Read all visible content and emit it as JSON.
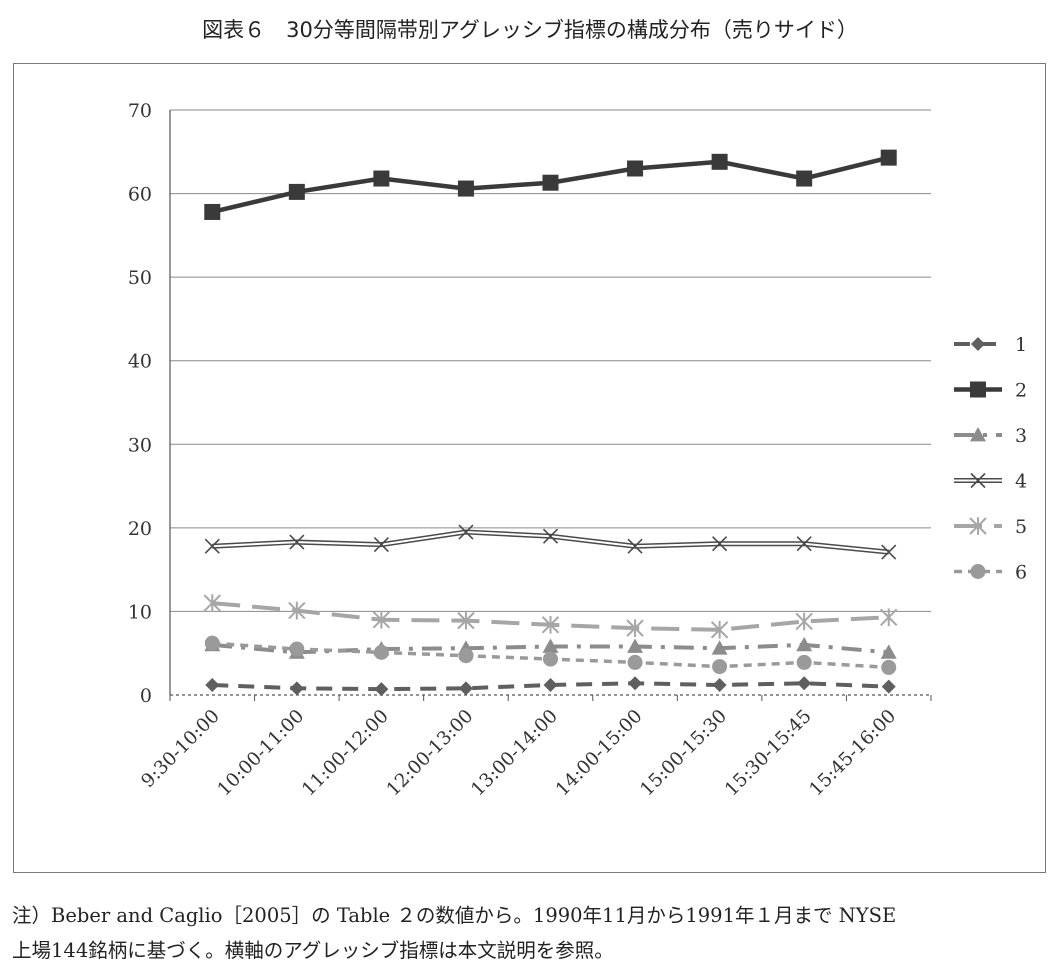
{
  "figure": {
    "title": "図表６　30分等間隔帯別アグレッシブ指標の構成分布（売りサイド）",
    "note_line1": "注）Beber and Caglio［2005］の Table ２の数値から。1990年11月から1991年１月まで NYSE",
    "note_line2": "上場144銘柄に基づく。横軸のアグレッシブ指標は本文説明を参照。"
  },
  "chart_data": {
    "type": "line",
    "title": "",
    "xlabel": "",
    "ylabel": "",
    "ylim": [
      0,
      70
    ],
    "yticks": [
      0,
      10,
      20,
      30,
      40,
      50,
      60,
      70
    ],
    "grid": true,
    "legend_position": "right",
    "categories": [
      "9:30-10:00",
      "10:00-11:00",
      "11:00-12:00",
      "12:00-13:00",
      "13:00-14:00",
      "14:00-15:00",
      "15:00-15:30",
      "15:30-15:45",
      "15:45-16:00"
    ],
    "series": [
      {
        "name": "1",
        "values": [
          1.2,
          0.8,
          0.7,
          0.8,
          1.2,
          1.4,
          1.2,
          1.4,
          1.0
        ],
        "color": "#5f5f5f",
        "dash": "dash",
        "marker": "diamond"
      },
      {
        "name": "2",
        "values": [
          57.8,
          60.2,
          61.8,
          60.6,
          61.3,
          63.0,
          63.8,
          61.8,
          64.3
        ],
        "color": "#3a3a3a",
        "dash": "solid",
        "marker": "square"
      },
      {
        "name": "3",
        "values": [
          6.0,
          5.1,
          5.5,
          5.6,
          5.8,
          5.8,
          5.6,
          6.0,
          5.1
        ],
        "color": "#8c8c8c",
        "dash": "dashdot",
        "marker": "triangle"
      },
      {
        "name": "4",
        "values": [
          17.8,
          18.3,
          18.0,
          19.5,
          19.0,
          17.8,
          18.1,
          18.1,
          17.1
        ],
        "color": "#4a4a4a",
        "dash": "double",
        "marker": "x"
      },
      {
        "name": "5",
        "values": [
          11.0,
          10.1,
          9.0,
          8.9,
          8.4,
          8.0,
          7.8,
          8.8,
          9.3
        ],
        "color": "#a6a6a6",
        "dash": "longdash",
        "marker": "asterisk"
      },
      {
        "name": "6",
        "values": [
          6.2,
          5.5,
          5.1,
          4.7,
          4.3,
          3.9,
          3.4,
          3.9,
          3.3
        ],
        "color": "#9a9a9a",
        "dash": "shortdash",
        "marker": "circle"
      }
    ]
  }
}
